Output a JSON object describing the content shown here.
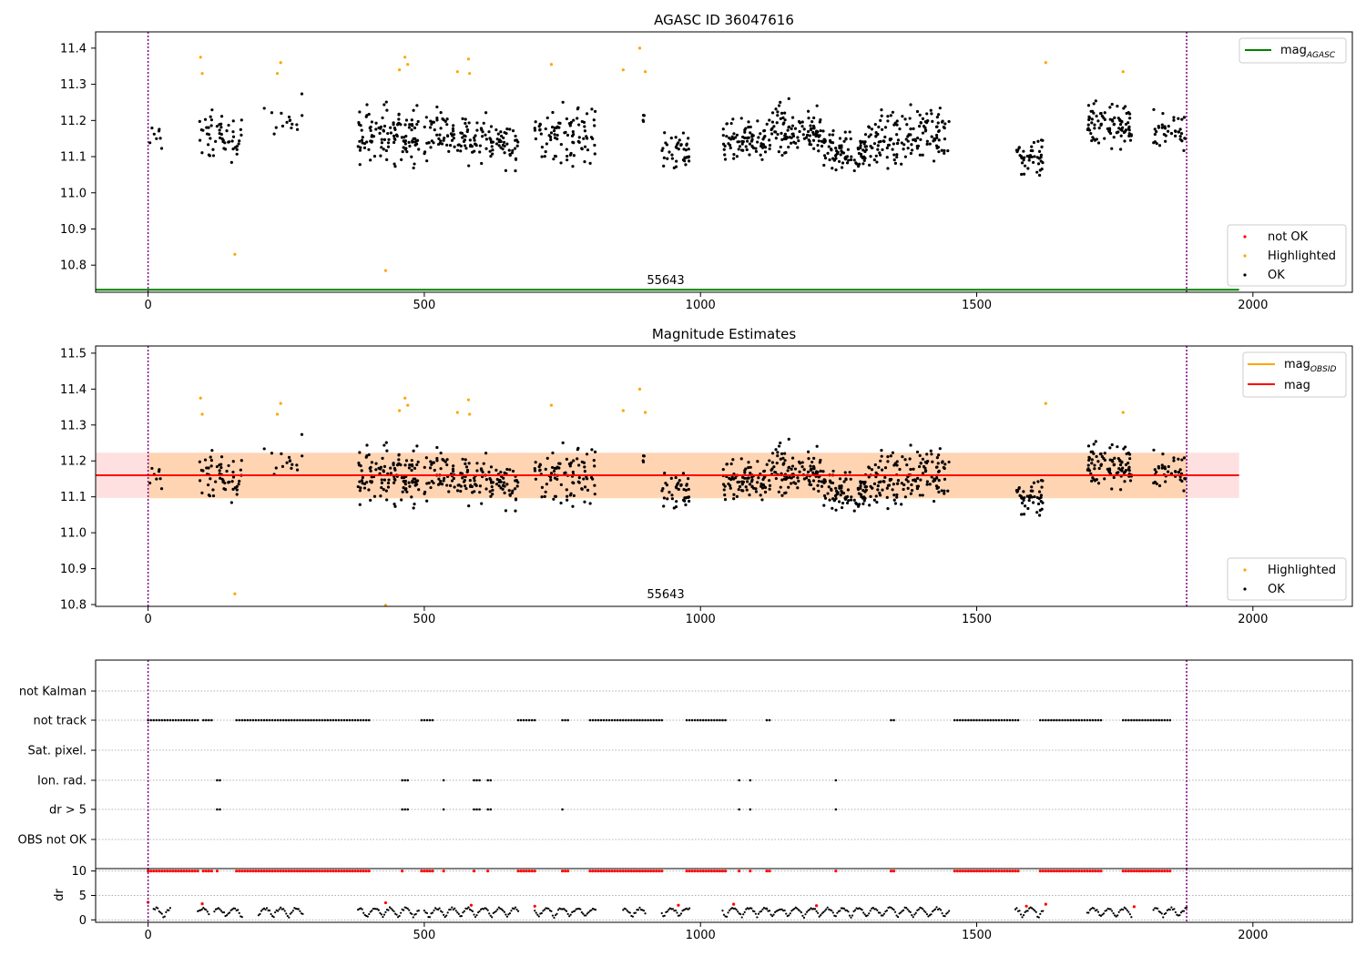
{
  "chart_data": [
    {
      "type": "scatter",
      "title": "AGASC ID 36047616",
      "xlim": [
        -95,
        2180
      ],
      "ylim": [
        10.725,
        11.445
      ],
      "xticks": [
        0,
        500,
        1000,
        1500,
        2000
      ],
      "yticks": [
        10.8,
        10.9,
        11.0,
        11.1,
        11.2,
        11.3,
        11.4
      ],
      "obsid_label": "55643",
      "obs_bounds": [
        0,
        1880
      ],
      "mag_agasc": 10.732,
      "legend_lines": [
        {
          "name": "mag_AGASC",
          "main": "mag",
          "sub": "AGASC",
          "color": "#008000"
        }
      ],
      "legend_points": [
        {
          "name": "not OK",
          "color": "#ff0000"
        },
        {
          "name": "Highlighted",
          "color": "#ffa500"
        },
        {
          "name": "OK",
          "color": "#000000"
        }
      ],
      "clusters": [
        {
          "x": [
            0,
            30
          ],
          "y": [
            11.1,
            11.2
          ],
          "n": 8
        },
        {
          "x": [
            90,
            170
          ],
          "y": [
            11.04,
            11.27
          ],
          "n": 55
        },
        {
          "x": [
            210,
            280
          ],
          "y": [
            11.14,
            11.29
          ],
          "n": 16
        },
        {
          "x": [
            380,
            490
          ],
          "y": [
            11.01,
            11.31
          ],
          "n": 120
        },
        {
          "x": [
            500,
            580
          ],
          "y": [
            11.04,
            11.29
          ],
          "n": 70
        },
        {
          "x": [
            580,
            670
          ],
          "y": [
            11.03,
            11.25
          ],
          "n": 80
        },
        {
          "x": [
            700,
            810
          ],
          "y": [
            11.01,
            11.31
          ],
          "n": 90
        },
        {
          "x": [
            870,
            900
          ],
          "y": [
            11.16,
            11.26
          ],
          "n": 4
        },
        {
          "x": [
            930,
            980
          ],
          "y": [
            11.03,
            11.2
          ],
          "n": 40
        },
        {
          "x": [
            1040,
            1120
          ],
          "y": [
            11.04,
            11.23
          ],
          "n": 80
        },
        {
          "x": [
            1120,
            1220
          ],
          "y": [
            11.05,
            11.3
          ],
          "n": 110
        },
        {
          "x": [
            1220,
            1300
          ],
          "y": [
            11.04,
            11.19
          ],
          "n": 90
        },
        {
          "x": [
            1300,
            1380
          ],
          "y": [
            11.02,
            11.28
          ],
          "n": 80
        },
        {
          "x": [
            1380,
            1450
          ],
          "y": [
            11.02,
            11.32
          ],
          "n": 70
        },
        {
          "x": [
            1570,
            1620
          ],
          "y": [
            11.0,
            11.2
          ],
          "n": 45
        },
        {
          "x": [
            1700,
            1780
          ],
          "y": [
            11.07,
            11.31
          ],
          "n": 90
        },
        {
          "x": [
            1820,
            1880
          ],
          "y": [
            11.09,
            11.25
          ],
          "n": 40
        }
      ],
      "highlighted": [
        [
          95,
          11.375
        ],
        [
          98,
          11.33
        ],
        [
          157,
          10.83
        ],
        [
          234,
          11.33
        ],
        [
          240,
          11.36
        ],
        [
          430,
          10.785
        ],
        [
          455,
          11.34
        ],
        [
          465,
          11.375
        ],
        [
          470,
          11.355
        ],
        [
          560,
          11.335
        ],
        [
          580,
          11.37
        ],
        [
          582,
          11.33
        ],
        [
          730,
          11.355
        ],
        [
          860,
          11.34
        ],
        [
          890,
          11.4
        ],
        [
          900,
          11.335
        ],
        [
          1625,
          11.36
        ],
        [
          1765,
          11.335
        ]
      ]
    },
    {
      "type": "scatter",
      "title": "Magnitude Estimates",
      "xlim": [
        -95,
        2180
      ],
      "ylim": [
        10.795,
        11.52
      ],
      "xticks": [
        0,
        500,
        1000,
        1500,
        2000
      ],
      "yticks": [
        10.8,
        10.9,
        11.0,
        11.1,
        11.2,
        11.3,
        11.4,
        11.5
      ],
      "obsid_label": "55643",
      "obs_bounds": [
        0,
        1880
      ],
      "mag": 11.16,
      "mag_band": [
        11.097,
        11.223
      ],
      "mag_obsid": 11.16,
      "mag_obsid_band": [
        11.095,
        11.222
      ],
      "legend_lines": [
        {
          "name": "mag_OBSID",
          "main": "mag",
          "sub": "OBSID",
          "color": "#ffa500"
        },
        {
          "name": "mag",
          "main": "mag",
          "sub": "",
          "color": "#ff0000"
        }
      ],
      "legend_points": [
        {
          "name": "Highlighted",
          "color": "#ffa500"
        },
        {
          "name": "OK",
          "color": "#000000"
        }
      ]
    },
    {
      "type": "scatter",
      "xlim": [
        -95,
        2180
      ],
      "xticks": [
        0,
        500,
        1000,
        1500,
        2000
      ],
      "categories": [
        "not Kalman",
        "not track",
        "Sat. pixel.",
        "Ion. rad.",
        "dr > 5",
        "OBS not OK"
      ],
      "flag_ranges": {
        "not track": [
          [
            0,
            90
          ],
          [
            100,
            115
          ],
          [
            160,
            400
          ],
          [
            495,
            515
          ],
          [
            670,
            700
          ],
          [
            750,
            760
          ],
          [
            800,
            930
          ],
          [
            975,
            1045
          ],
          [
            1120,
            1125
          ],
          [
            1345,
            1350
          ],
          [
            1460,
            1575
          ],
          [
            1615,
            1725
          ],
          [
            1765,
            1850
          ]
        ],
        "Ion. rad.": [
          [
            125,
            132
          ],
          [
            460,
            470
          ],
          [
            535,
            535
          ],
          [
            590,
            600
          ],
          [
            615,
            620
          ],
          [
            1070,
            1070
          ],
          [
            1090,
            1090
          ],
          [
            1245,
            1245
          ]
        ],
        "dr > 5": [
          [
            125,
            132
          ],
          [
            460,
            470
          ],
          [
            535,
            535
          ],
          [
            590,
            600
          ],
          [
            615,
            620
          ],
          [
            750,
            750
          ],
          [
            1070,
            1070
          ],
          [
            1090,
            1090
          ],
          [
            1245,
            1245
          ]
        ]
      },
      "dr": {
        "ylabel": "dr",
        "yticks": [
          0,
          5,
          10
        ],
        "ylim": [
          -0.5,
          10.5
        ],
        "clip_value": 10,
        "segments": [
          [
            10,
            40
          ],
          [
            90,
            110
          ],
          [
            120,
            170
          ],
          [
            200,
            280
          ],
          [
            380,
            490
          ],
          [
            500,
            580
          ],
          [
            580,
            670
          ],
          [
            700,
            810
          ],
          [
            860,
            900
          ],
          [
            930,
            980
          ],
          [
            1040,
            1120
          ],
          [
            1120,
            1300
          ],
          [
            1300,
            1450
          ],
          [
            1570,
            1620
          ],
          [
            1700,
            1780
          ],
          [
            1820,
            1880
          ]
        ]
      },
      "obs_bounds": [
        0,
        1880
      ]
    }
  ]
}
